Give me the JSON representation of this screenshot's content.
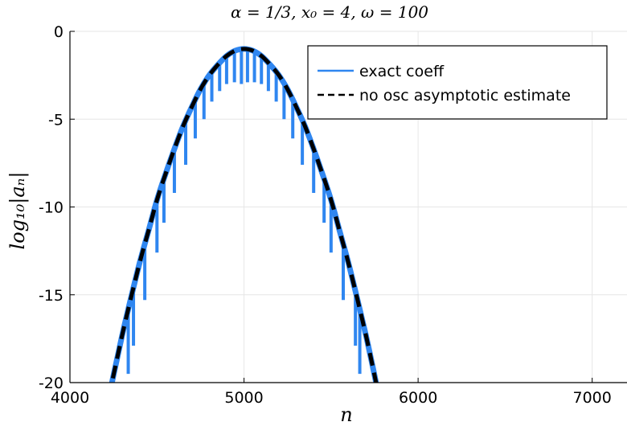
{
  "chart_data": {
    "type": "line",
    "title": "α = 1/3, x₀ = 4, ω = 100",
    "xlabel": "n",
    "ylabel": "log₁₀|aₙ|",
    "xlim": [
      4000,
      7200
    ],
    "ylim": [
      -20,
      0
    ],
    "x_ticks": [
      4000,
      5000,
      6000,
      7000
    ],
    "x_tick_labels": [
      "4000",
      "5000",
      "6000",
      "7000"
    ],
    "y_ticks": [
      0,
      -5,
      -10,
      -15,
      -20
    ],
    "y_tick_labels": [
      "0",
      "-5",
      "-10",
      "-15",
      "-20"
    ],
    "grid": true,
    "legend_position": "top-right",
    "series": [
      {
        "name": "exact coeff",
        "style": "solid",
        "color": "#2f86f0",
        "x": [
          4200,
          4250,
          4300,
          4350,
          4400,
          4450,
          4500,
          4550,
          4600,
          4650,
          4700,
          4750,
          4800,
          4850,
          4900,
          4950,
          5000,
          5050,
          5100,
          5150,
          5200,
          5250,
          5300,
          5350,
          5400,
          5450,
          5500,
          5550,
          5600,
          5650,
          5700,
          5750,
          5800
        ],
        "y": [
          -22.0,
          -19.6,
          -17.3,
          -15.2,
          -13.2,
          -11.4,
          -9.6,
          -8.1,
          -6.7,
          -5.4,
          -4.3,
          -3.3,
          -2.5,
          -1.9,
          -1.4,
          -1.1,
          -1.0,
          -1.1,
          -1.4,
          -1.9,
          -2.5,
          -3.3,
          -4.3,
          -5.4,
          -6.7,
          -8.1,
          -9.6,
          -11.4,
          -13.2,
          -15.2,
          -17.3,
          -19.6,
          -22.0
        ],
        "dips": [
          {
            "x": 4335,
            "y": -19.5
          },
          {
            "x": 4365,
            "y": -17.9
          },
          {
            "x": 4430,
            "y": -15.3
          },
          {
            "x": 4500,
            "y": -12.6
          },
          {
            "x": 4540,
            "y": -10.9
          },
          {
            "x": 4600,
            "y": -9.2
          },
          {
            "x": 4665,
            "y": -7.6
          },
          {
            "x": 4720,
            "y": -6.1
          },
          {
            "x": 4770,
            "y": -5.0
          },
          {
            "x": 4815,
            "y": -4.0
          },
          {
            "x": 4860,
            "y": -3.4
          },
          {
            "x": 4900,
            "y": -3.0
          },
          {
            "x": 4945,
            "y": -2.9
          },
          {
            "x": 4985,
            "y": -3.0
          },
          {
            "x": 5020,
            "y": -2.9
          },
          {
            "x": 5060,
            "y": -2.9
          },
          {
            "x": 5100,
            "y": -3.0
          },
          {
            "x": 5140,
            "y": -3.4
          },
          {
            "x": 5185,
            "y": -4.0
          },
          {
            "x": 5230,
            "y": -5.0
          },
          {
            "x": 5280,
            "y": -6.1
          },
          {
            "x": 5335,
            "y": -7.6
          },
          {
            "x": 5400,
            "y": -9.2
          },
          {
            "x": 5460,
            "y": -10.9
          },
          {
            "x": 5500,
            "y": -12.6
          },
          {
            "x": 5570,
            "y": -15.3
          },
          {
            "x": 5640,
            "y": -17.9
          },
          {
            "x": 5665,
            "y": -19.5
          }
        ]
      },
      {
        "name": "no osc asymptotic estimate",
        "style": "dashed",
        "color": "#000000",
        "x": [
          4200,
          4250,
          4300,
          4350,
          4400,
          4450,
          4500,
          4550,
          4600,
          4650,
          4700,
          4750,
          4800,
          4850,
          4900,
          4950,
          5000,
          5050,
          5100,
          5150,
          5200,
          5250,
          5300,
          5350,
          5400,
          5450,
          5500,
          5550,
          5600,
          5650,
          5700,
          5750,
          5800
        ],
        "y": [
          -22.0,
          -19.6,
          -17.3,
          -15.2,
          -13.2,
          -11.4,
          -9.6,
          -8.1,
          -6.7,
          -5.4,
          -4.3,
          -3.3,
          -2.5,
          -1.9,
          -1.4,
          -1.1,
          -1.0,
          -1.1,
          -1.4,
          -1.9,
          -2.5,
          -3.3,
          -4.3,
          -5.4,
          -6.7,
          -8.1,
          -9.6,
          -11.4,
          -13.2,
          -15.2,
          -17.3,
          -19.6,
          -22.0
        ]
      }
    ]
  }
}
